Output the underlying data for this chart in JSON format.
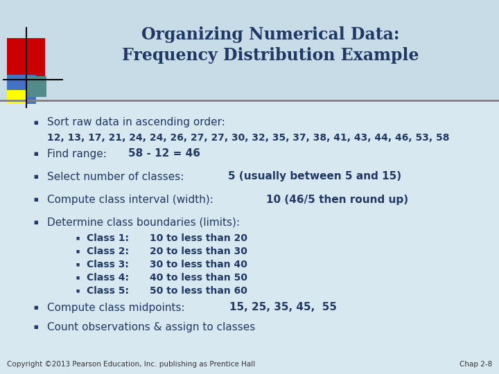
{
  "title_line1": "Organizing Numerical Data:",
  "title_line2": "Frequency Distribution Example",
  "title_color": "#1F3864",
  "bg_color": "#C8DCE8",
  "header_bg": "#C8DCE8",
  "content_bg": "#D8E8F0",
  "tc": "#1F3864",
  "bullet_char": "■",
  "sub_bullet_char": "■",
  "footer_left": "Copyright ©2013 Pearson Education, Inc. publishing as Prentice Hall",
  "footer_right": "Chap 2-8",
  "divider_color": "#808080",
  "title_fontsize": 17,
  "main_fontsize": 11,
  "data_fontsize": 10,
  "sub_fontsize": 10,
  "footer_fontsize": 7.5
}
